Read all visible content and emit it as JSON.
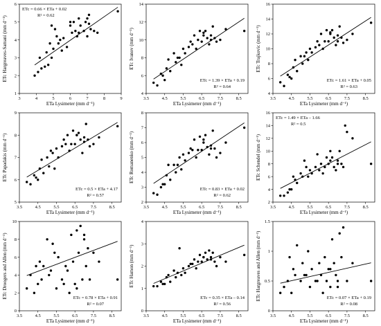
{
  "chart_data": [
    {
      "type": "scatter",
      "xlabel": "ETa Lysimeter (mm d⁻¹)",
      "ylabel": "ETc Hargreaves-Samani (mm d⁻¹)",
      "xlim": [
        3,
        9
      ],
      "ylim": [
        1,
        6
      ],
      "xticks": [
        "3",
        "4",
        "5",
        "6",
        "7",
        "8",
        "9"
      ],
      "yticks": [
        "1",
        "2",
        "3",
        "4",
        "5",
        "6"
      ],
      "equation": "ETc = 0.66 × ETa + 0.02",
      "r2": "R² = 0.62",
      "equation_pos": "top-left",
      "fit": {
        "slope": 0.66,
        "intercept": 0.02
      },
      "x": [
        3.9,
        4.1,
        4.3,
        4.5,
        4.6,
        4.7,
        4.8,
        4.9,
        5.0,
        5.1,
        5.2,
        5.3,
        5.4,
        5.6,
        5.8,
        6.0,
        6.1,
        6.2,
        6.3,
        6.4,
        6.5,
        6.6,
        6.8,
        6.9,
        7.0,
        7.0,
        7.1,
        7.2,
        7.4,
        7.6,
        8.8,
        4.2,
        4.9,
        5.5,
        6.0,
        6.5,
        7.1
      ],
      "y": [
        2.0,
        2.2,
        2.4,
        2.5,
        3.3,
        2.6,
        3.8,
        3.0,
        3.5,
        4.6,
        4.2,
        3.8,
        4.0,
        4.1,
        3.6,
        4.8,
        4.4,
        5.0,
        4.5,
        4.2,
        5.2,
        4.8,
        4.5,
        5.0,
        4.2,
        5.2,
        5.4,
        4.6,
        4.5,
        4.4,
        5.6,
        3.0,
        4.8,
        3.4,
        5.0,
        4.4,
        4.9
      ]
    },
    {
      "type": "scatter",
      "xlabel": "ETa Lysimeter (mm d⁻¹)",
      "ylabel": "ETc Ivanov (mm d⁻¹)",
      "xlim": [
        3.5,
        9
      ],
      "ylim": [
        4,
        14
      ],
      "xticks": [
        "3.5",
        "4.5",
        "5.5",
        "6.5",
        "7.5",
        "8.5"
      ],
      "yticks": [
        "4",
        "6",
        "8",
        "10",
        "12",
        "14"
      ],
      "equation": "ETc = 1.39 × ETa + 0.19",
      "r2": "R² = 0.64",
      "equation_pos": "bottom-right",
      "fit": {
        "slope": 1.39,
        "intercept": 0.19
      },
      "x": [
        3.9,
        4.1,
        4.3,
        4.5,
        4.6,
        4.7,
        4.8,
        5.0,
        5.1,
        5.3,
        5.4,
        5.5,
        5.6,
        5.8,
        6.0,
        6.1,
        6.2,
        6.3,
        6.4,
        6.5,
        6.6,
        6.7,
        6.8,
        6.9,
        7.0,
        7.1,
        7.2,
        7.3,
        7.5,
        7.8,
        8.8,
        4.4,
        5.2,
        5.9,
        6.6,
        7.0
      ],
      "y": [
        5.2,
        4.9,
        6.2,
        5.5,
        6.8,
        7.8,
        6.5,
        8.5,
        7.5,
        8.0,
        7.2,
        9.0,
        8.5,
        9.2,
        9.5,
        10.5,
        9.0,
        10.0,
        11.0,
        9.8,
        10.5,
        11.0,
        10.2,
        9.5,
        10.5,
        11.5,
        10.2,
        9.8,
        10.0,
        11.2,
        11.0,
        6.0,
        8.0,
        9.8,
        10.8,
        10.0
      ]
    },
    {
      "type": "scatter",
      "xlabel": "ETa Lysimeter (mm d⁻¹)",
      "ylabel": "ETc Trajkovic (mm d⁻¹)",
      "xlim": [
        3.5,
        9
      ],
      "ylim": [
        4,
        16
      ],
      "xticks": [
        "3.5",
        "4.5",
        "5.5",
        "6.5",
        "7.5",
        "8.5"
      ],
      "yticks": [
        "4",
        "6",
        "8",
        "10",
        "12",
        "14",
        "16"
      ],
      "equation": "ETc = 1.61 × ETa + 0.05",
      "r2": "R² = 0.63",
      "equation_pos": "bottom-right",
      "fit": {
        "slope": 1.61,
        "intercept": 0.05
      },
      "x": [
        3.9,
        4.1,
        4.3,
        4.5,
        4.6,
        4.7,
        4.8,
        5.0,
        5.1,
        5.3,
        5.4,
        5.5,
        5.6,
        5.8,
        6.0,
        6.1,
        6.2,
        6.3,
        6.4,
        6.5,
        6.6,
        6.7,
        6.8,
        6.9,
        7.0,
        7.1,
        7.2,
        7.3,
        7.5,
        7.8,
        8.8,
        4.4,
        5.2,
        5.9,
        6.6,
        7.0
      ],
      "y": [
        5.5,
        5.0,
        6.5,
        6.0,
        7.5,
        8.5,
        7.0,
        9.0,
        8.0,
        9.5,
        8.5,
        10.0,
        9.5,
        10.2,
        10.5,
        12.0,
        10.0,
        11.0,
        12.5,
        11.0,
        12.0,
        12.5,
        11.5,
        10.5,
        11.8,
        13.0,
        11.5,
        10.8,
        11.2,
        12.0,
        13.5,
        6.2,
        9.0,
        11.0,
        12.2,
        11.0
      ]
    },
    {
      "type": "scatter",
      "xlabel": "ETa Lysimeter (mm d⁻¹)",
      "ylabel": "ETc Papadakis (mm d⁻¹)",
      "xlim": [
        3.5,
        9
      ],
      "ylim": [
        5,
        9
      ],
      "xticks": [
        "3.5",
        "4.5",
        "5.5",
        "6.5",
        "7.5",
        "8.5"
      ],
      "yticks": [
        "5",
        "6",
        "7",
        "8",
        "9"
      ],
      "equation": "ETc = 0.5 × ETa + 4.17",
      "r2": "R² = 0.57",
      "equation_pos": "bottom-right",
      "fit": {
        "slope": 0.5,
        "intercept": 4.17
      },
      "x": [
        3.9,
        4.1,
        4.3,
        4.5,
        4.6,
        4.7,
        4.8,
        5.0,
        5.1,
        5.3,
        5.4,
        5.5,
        5.6,
        5.8,
        6.0,
        6.1,
        6.2,
        6.3,
        6.4,
        6.5,
        6.6,
        6.7,
        6.8,
        6.9,
        7.0,
        7.1,
        7.2,
        7.3,
        7.5,
        7.8,
        8.8,
        4.4,
        5.2,
        5.9,
        6.6,
        7.0
      ],
      "y": [
        5.9,
        5.8,
        6.2,
        6.0,
        6.5,
        6.9,
        6.3,
        7.0,
        6.6,
        7.2,
        6.5,
        7.4,
        7.0,
        7.5,
        7.6,
        8.0,
        7.3,
        7.6,
        8.2,
        7.6,
        8.0,
        8.1,
        7.8,
        7.2,
        7.9,
        8.5,
        7.8,
        7.5,
        7.6,
        7.9,
        8.4,
        6.1,
        7.3,
        7.8,
        8.0,
        7.7
      ]
    },
    {
      "type": "scatter",
      "xlabel": "ETa Lysimeter (mm d⁻¹)",
      "ylabel": "ETc Romanenko (mm d⁻¹)",
      "xlim": [
        3.5,
        9
      ],
      "ylim": [
        2,
        8
      ],
      "xticks": [
        "3.5",
        "4.5",
        "5.5",
        "6.5",
        "7.5",
        "8.5"
      ],
      "yticks": [
        "2",
        "3",
        "4",
        "5",
        "6",
        "7",
        "8"
      ],
      "equation": "ETc = 0.83 × ETa + 0.02",
      "r2": "R² = 0.62",
      "equation_pos": "bottom-right",
      "fit": {
        "slope": 0.83,
        "intercept": 0.02
      },
      "x": [
        3.9,
        4.1,
        4.3,
        4.5,
        4.6,
        4.7,
        4.8,
        5.0,
        5.1,
        5.3,
        5.4,
        5.5,
        5.6,
        5.8,
        6.0,
        6.1,
        6.2,
        6.3,
        6.4,
        6.5,
        6.6,
        6.7,
        6.8,
        6.9,
        7.0,
        7.1,
        7.2,
        7.3,
        7.5,
        7.8,
        8.8,
        4.4,
        5.2,
        5.9,
        6.6,
        7.0
      ],
      "y": [
        2.6,
        2.5,
        3.0,
        3.2,
        3.8,
        4.5,
        3.5,
        4.5,
        4.0,
        5.0,
        4.2,
        5.2,
        4.8,
        5.3,
        5.5,
        6.2,
        5.0,
        5.5,
        6.4,
        5.5,
        6.0,
        6.5,
        5.7,
        5.2,
        5.8,
        6.8,
        5.6,
        5.0,
        5.3,
        6.0,
        7.0,
        3.2,
        4.5,
        5.6,
        6.2,
        5.6
      ]
    },
    {
      "type": "scatter",
      "xlabel": "ETa Lysimeter (mm d⁻¹)",
      "ylabel": "ETc Schendel (mm d⁻¹)",
      "xlim": [
        3.5,
        9
      ],
      "ylim": [
        2,
        16
      ],
      "xticks": [
        "3.5",
        "4.5",
        "5.5",
        "6.5",
        "7.5",
        "8.5"
      ],
      "yticks": [
        "2",
        "4",
        "6",
        "8",
        "10",
        "12",
        "14",
        "16"
      ],
      "equation": "ETc = 1.49 × ETa – 1.66",
      "r2": "R² = 0.5",
      "equation_pos": "top-left",
      "fit": {
        "slope": 1.49,
        "intercept": -1.66
      },
      "x": [
        3.9,
        4.1,
        4.3,
        4.5,
        4.6,
        4.7,
        4.8,
        5.0,
        5.1,
        5.3,
        5.4,
        5.5,
        5.6,
        5.8,
        6.0,
        6.1,
        6.2,
        6.3,
        6.4,
        6.5,
        6.6,
        6.7,
        6.8,
        6.9,
        7.0,
        7.1,
        7.2,
        7.3,
        7.5,
        7.8,
        8.8,
        4.4,
        5.2,
        5.9,
        6.6,
        7.0,
        7.4
      ],
      "y": [
        3.0,
        3.0,
        3.5,
        4.0,
        6.0,
        5.5,
        5.0,
        6.5,
        6.0,
        7.5,
        6.0,
        7.0,
        6.5,
        7.5,
        7.0,
        8.0,
        6.5,
        7.5,
        9.0,
        8.0,
        8.5,
        9.0,
        7.5,
        7.0,
        8.0,
        10.0,
        8.0,
        7.5,
        13.0,
        12.0,
        8.0,
        4.0,
        8.5,
        9.5,
        10.0,
        8.5,
        14.0
      ]
    },
    {
      "type": "scatter",
      "xlabel": "ETa Lysimeter (mm d⁻¹)",
      "ylabel": "ETc Droogers and Allen (mm d⁻¹)",
      "xlim": [
        3.5,
        9
      ],
      "ylim": [
        0,
        10
      ],
      "xticks": [
        "3.5",
        "4.5",
        "5.5",
        "6.5",
        "7.5",
        "8.5"
      ],
      "yticks": [
        "0",
        "2",
        "4",
        "6",
        "8",
        "10"
      ],
      "equation": "ETc = 0.78 × ETa + 0.91",
      "r2": "R² = 0.07",
      "equation_pos": "bottom-right",
      "fit": {
        "slope": 0.78,
        "intercept": 0.91
      },
      "x": [
        3.9,
        4.1,
        4.3,
        4.5,
        4.6,
        4.7,
        4.8,
        5.0,
        5.1,
        5.3,
        5.4,
        5.5,
        5.6,
        5.8,
        6.0,
        6.1,
        6.2,
        6.3,
        6.4,
        6.5,
        6.6,
        6.7,
        6.8,
        6.9,
        7.0,
        7.1,
        7.2,
        7.3,
        7.5,
        7.8,
        8.8,
        4.4,
        5.2,
        5.9,
        6.6,
        7.0
      ],
      "y": [
        2.5,
        4.0,
        2.0,
        3.0,
        5.5,
        3.5,
        5.0,
        8.0,
        4.0,
        7.5,
        6.5,
        2.5,
        6.0,
        3.5,
        5.0,
        4.5,
        2.0,
        8.5,
        5.5,
        3.0,
        9.0,
        6.5,
        9.5,
        3.5,
        8.0,
        5.0,
        7.0,
        3.5,
        6.5,
        5.5,
        3.5,
        5.0,
        4.5,
        3.0,
        2.5,
        8.5
      ]
    },
    {
      "type": "scatter",
      "xlabel": "ETa Lysimeter (mm d⁻¹)",
      "ylabel": "ETc Hamon (mm d⁻¹)",
      "xlim": [
        3.5,
        9
      ],
      "ylim": [
        0,
        4
      ],
      "xticks": [
        "3.5",
        "4.5",
        "5.5",
        "6.5",
        "7.5",
        "8.5"
      ],
      "yticks": [
        "0",
        "1",
        "2",
        "3",
        "4"
      ],
      "equation": "ETc = 0.35 × ETa – 0.14",
      "r2": "R² = 0.56",
      "equation_pos": "bottom-right",
      "fit": {
        "slope": 0.35,
        "intercept": -0.14
      },
      "x": [
        3.9,
        4.1,
        4.3,
        4.5,
        4.6,
        4.7,
        4.8,
        5.0,
        5.1,
        5.3,
        5.4,
        5.5,
        5.6,
        5.8,
        6.0,
        6.1,
        6.2,
        6.3,
        6.4,
        6.5,
        6.6,
        6.7,
        6.8,
        6.9,
        7.0,
        7.1,
        7.2,
        7.3,
        7.5,
        7.8,
        8.8,
        4.4,
        5.2,
        5.9,
        6.6,
        7.0
      ],
      "y": [
        1.1,
        1.1,
        1.3,
        1.2,
        1.5,
        1.6,
        1.3,
        1.8,
        1.5,
        2.8,
        1.6,
        1.9,
        1.7,
        2.0,
        2.1,
        2.3,
        1.9,
        2.2,
        2.5,
        2.2,
        2.4,
        2.6,
        2.3,
        2.7,
        2.4,
        2.6,
        2.2,
        2.0,
        2.4,
        2.2,
        2.5,
        1.2,
        1.7,
        2.1,
        2.4,
        2.3
      ]
    },
    {
      "type": "scatter",
      "xlabel": "ETa Lysimeter (mm d⁻¹)",
      "ylabel": "ETc Hargreaves and Allen (mm d⁻¹)",
      "xlim": [
        3.5,
        9
      ],
      "ylim": [
        0,
        1.5
      ],
      "xticks": [
        "3.5",
        "4.5",
        "5.5",
        "6.5",
        "7.5",
        "8.5"
      ],
      "yticks": [
        "0",
        "0.5",
        "1",
        "1.5"
      ],
      "equation": "ETc = 0.07 × ETa + 0.19",
      "r2": "R² = 0.08",
      "equation_pos": "bottom-right",
      "fit": {
        "slope": 0.07,
        "intercept": 0.19
      },
      "x": [
        3.9,
        4.1,
        4.3,
        4.5,
        4.6,
        4.7,
        4.8,
        5.0,
        5.1,
        5.3,
        5.4,
        5.5,
        5.6,
        5.8,
        6.0,
        6.1,
        6.2,
        6.3,
        6.4,
        6.5,
        6.6,
        6.7,
        6.8,
        6.9,
        7.0,
        7.1,
        7.2,
        7.3,
        7.5,
        7.8,
        8.8,
        4.4,
        5.2,
        5.9,
        6.6,
        7.0
      ],
      "y": [
        0.3,
        0.4,
        0.5,
        0.3,
        0.7,
        0.6,
        1.1,
        0.5,
        0.8,
        0.6,
        1.0,
        0.4,
        0.7,
        0.5,
        0.8,
        0.6,
        0.3,
        0.9,
        0.5,
        0.7,
        0.4,
        1.2,
        0.8,
        0.6,
        0.5,
        1.3,
        0.9,
        1.4,
        0.5,
        0.8,
        0.5,
        0.9,
        0.6,
        0.5,
        0.7,
        0.4
      ]
    }
  ]
}
